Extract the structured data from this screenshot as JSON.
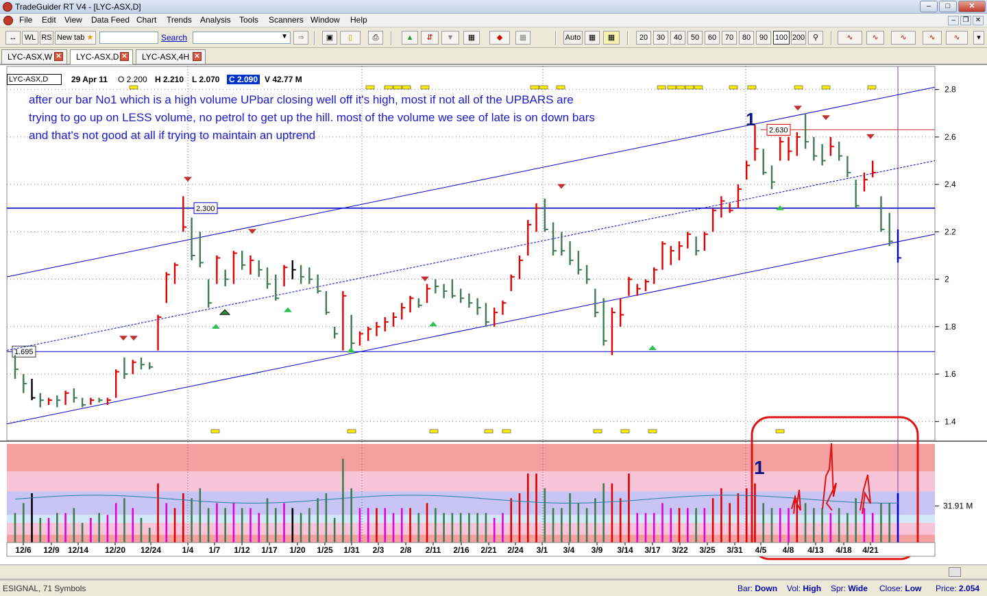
{
  "window": {
    "title": "TradeGuider RT V4 - [LYC-ASX,D]",
    "min_icon": "minimize-icon",
    "max_icon": "maximize-icon",
    "close_icon": "close-icon"
  },
  "menu": [
    "File",
    "Edit",
    "View",
    "Data Feed",
    "Chart",
    "Trends",
    "Analysis",
    "Tools",
    "Scanners",
    "Window",
    "Help"
  ],
  "toolbar": {
    "wl_label": "WL",
    "rs_label": "RS",
    "newtab_label": "New tab",
    "search_link": "Search",
    "auto_label": "Auto",
    "zoom_levels": [
      "20",
      "30",
      "40",
      "50",
      "60",
      "70",
      "80",
      "90",
      "100",
      "200"
    ]
  },
  "tabs": [
    {
      "label": "LYC-ASX,W"
    },
    {
      "label": "LYC-ASX,D"
    },
    {
      "label": "LYC-ASX,4H"
    }
  ],
  "chart_header": {
    "symbol": "LYC-ASX,D",
    "date": "29 Apr 11",
    "open": "O 2.200",
    "high": "H 2.210",
    "low": "L 2.070",
    "close": "C 2.090",
    "volume": "V 42.77 M"
  },
  "annotation": {
    "text": "after our bar No1 which is a high volume UPbar closing well off it's high, most if not all of the UPBARS are trying to go up on LESS volume, no petrol to get up the hill. most of the volume we see of late is on down bars and that's not good at all if trying to maintain an uptrend",
    "marker_price": "1",
    "marker_volume": "1"
  },
  "chart_data": {
    "type": "bar",
    "price_axis": {
      "ticks": [
        "2.8",
        "2.6",
        "2.4",
        "2.2",
        "2",
        "1.8",
        "1.6",
        "1.4"
      ],
      "ylim": [
        1.32,
        2.88
      ]
    },
    "volume_axis": {
      "label": "31.91 M"
    },
    "x_ticks": [
      "12/6",
      "12/9",
      "12/14",
      "12/20",
      "12/24",
      "1/4",
      "1/7",
      "1/12",
      "1/17",
      "1/20",
      "1/25",
      "1/31",
      "2/3",
      "2/8",
      "2/11",
      "2/16",
      "2/21",
      "2/24",
      "3/1",
      "3/4",
      "3/9",
      "3/14",
      "3/17",
      "3/22",
      "3/25",
      "3/31",
      "4/5",
      "4/8",
      "4/13",
      "4/18",
      "4/21"
    ],
    "level_labels": [
      "2.300",
      "1.695",
      "2.630"
    ],
    "levels": [
      2.3,
      1.695,
      2.63
    ],
    "colors": {
      "up": "#e00000",
      "down": "#3f7a52",
      "neutral": "#000000",
      "highlight": "#0000dd",
      "volume_magenta": "#e000e0"
    },
    "bars": [
      [
        1.68,
        1.58,
        1.62,
        "d"
      ],
      [
        1.6,
        1.52,
        1.56,
        "d"
      ],
      [
        1.58,
        1.49,
        1.5,
        "k"
      ],
      [
        1.52,
        1.46,
        1.49,
        "d"
      ],
      [
        1.5,
        1.47,
        1.49,
        "r"
      ],
      [
        1.51,
        1.46,
        1.49,
        "d"
      ],
      [
        1.53,
        1.47,
        1.52,
        "r"
      ],
      [
        1.54,
        1.48,
        1.5,
        "d"
      ],
      [
        1.5,
        1.46,
        1.47,
        "d"
      ],
      [
        1.5,
        1.47,
        1.49,
        "r"
      ],
      [
        1.5,
        1.48,
        1.49,
        "d"
      ],
      [
        1.5,
        1.47,
        1.49,
        "r"
      ],
      [
        1.62,
        1.5,
        1.61,
        "r"
      ],
      [
        1.67,
        1.58,
        1.6,
        "d"
      ],
      [
        1.66,
        1.6,
        1.65,
        "r"
      ],
      [
        1.67,
        1.62,
        1.64,
        "d"
      ],
      [
        1.65,
        1.62,
        1.63,
        "d"
      ],
      [
        1.85,
        1.7,
        1.84,
        "r"
      ],
      [
        2.03,
        1.9,
        2.02,
        "r"
      ],
      [
        2.07,
        1.98,
        2.06,
        "r"
      ],
      [
        2.35,
        2.2,
        2.22,
        "r"
      ],
      [
        2.26,
        2.08,
        2.1,
        "d"
      ],
      [
        2.2,
        2.05,
        2.07,
        "d"
      ],
      [
        2.0,
        1.88,
        1.9,
        "d"
      ],
      [
        2.1,
        1.98,
        2.09,
        "r"
      ],
      [
        2.04,
        1.97,
        2.0,
        "d"
      ],
      [
        2.12,
        1.98,
        2.11,
        "r"
      ],
      [
        2.12,
        2.04,
        2.06,
        "d"
      ],
      [
        2.1,
        2.02,
        2.08,
        "r"
      ],
      [
        2.08,
        2.01,
        2.04,
        "d"
      ],
      [
        2.05,
        1.96,
        1.98,
        "d"
      ],
      [
        2.02,
        1.91,
        1.92,
        "d"
      ],
      [
        2.06,
        1.97,
        2.05,
        "r"
      ],
      [
        2.08,
        2.0,
        2.04,
        "k"
      ],
      [
        2.06,
        1.98,
        2.01,
        "d"
      ],
      [
        2.05,
        1.98,
        2.0,
        "d"
      ],
      [
        2.02,
        1.94,
        1.95,
        "d"
      ],
      [
        1.95,
        1.85,
        1.86,
        "d"
      ],
      [
        1.8,
        1.75,
        1.77,
        "d"
      ],
      [
        1.95,
        1.7,
        1.93,
        "r"
      ],
      [
        1.85,
        1.7,
        1.73,
        "d"
      ],
      [
        1.78,
        1.72,
        1.77,
        "r"
      ],
      [
        1.8,
        1.74,
        1.79,
        "r"
      ],
      [
        1.82,
        1.76,
        1.8,
        "r"
      ],
      [
        1.84,
        1.78,
        1.82,
        "r"
      ],
      [
        1.86,
        1.8,
        1.84,
        "r"
      ],
      [
        1.9,
        1.83,
        1.88,
        "r"
      ],
      [
        1.93,
        1.86,
        1.92,
        "r"
      ],
      [
        1.92,
        1.88,
        1.89,
        "d"
      ],
      [
        1.98,
        1.9,
        1.96,
        "r"
      ],
      [
        2.0,
        1.94,
        1.97,
        "d"
      ],
      [
        1.98,
        1.92,
        1.95,
        "d"
      ],
      [
        2.0,
        1.92,
        1.93,
        "d"
      ],
      [
        1.96,
        1.9,
        1.92,
        "d"
      ],
      [
        1.94,
        1.88,
        1.9,
        "d"
      ],
      [
        1.92,
        1.85,
        1.88,
        "d"
      ],
      [
        1.9,
        1.8,
        1.82,
        "d"
      ],
      [
        1.88,
        1.8,
        1.86,
        "r"
      ],
      [
        1.91,
        1.85,
        1.9,
        "r"
      ],
      [
        2.02,
        1.95,
        2.01,
        "r"
      ],
      [
        2.1,
        2.0,
        2.08,
        "r"
      ],
      [
        2.25,
        2.1,
        2.23,
        "r"
      ],
      [
        2.32,
        2.2,
        2.3,
        "r"
      ],
      [
        2.34,
        2.2,
        2.21,
        "d"
      ],
      [
        2.24,
        2.1,
        2.12,
        "d"
      ],
      [
        2.2,
        2.1,
        2.12,
        "d"
      ],
      [
        2.16,
        2.06,
        2.08,
        "d"
      ],
      [
        2.12,
        2.02,
        2.04,
        "d"
      ],
      [
        2.06,
        1.98,
        2.0,
        "d"
      ],
      [
        1.96,
        1.84,
        1.86,
        "d"
      ],
      [
        1.92,
        1.72,
        1.74,
        "d"
      ],
      [
        1.88,
        1.68,
        1.86,
        "r"
      ],
      [
        1.92,
        1.8,
        1.85,
        "r"
      ],
      [
        2.01,
        1.93,
        2.0,
        "r"
      ],
      [
        1.98,
        1.93,
        1.96,
        "r"
      ],
      [
        2.0,
        1.95,
        1.99,
        "r"
      ],
      [
        2.05,
        1.98,
        2.04,
        "r"
      ],
      [
        2.16,
        2.04,
        2.15,
        "r"
      ],
      [
        2.14,
        2.06,
        2.12,
        "r"
      ],
      [
        2.16,
        2.08,
        2.14,
        "r"
      ],
      [
        2.2,
        2.13,
        2.19,
        "r"
      ],
      [
        2.18,
        2.1,
        2.12,
        "d"
      ],
      [
        2.2,
        2.12,
        2.19,
        "r"
      ],
      [
        2.3,
        2.2,
        2.29,
        "r"
      ],
      [
        2.35,
        2.26,
        2.33,
        "r"
      ],
      [
        2.32,
        2.28,
        2.29,
        "r"
      ],
      [
        2.4,
        2.3,
        2.38,
        "r"
      ],
      [
        2.5,
        2.42,
        2.48,
        "r"
      ],
      [
        2.65,
        2.5,
        2.55,
        "r"
      ],
      [
        2.55,
        2.44,
        2.45,
        "d"
      ],
      [
        2.48,
        2.38,
        2.41,
        "d"
      ],
      [
        2.6,
        2.5,
        2.58,
        "r"
      ],
      [
        2.6,
        2.5,
        2.54,
        "r"
      ],
      [
        2.62,
        2.52,
        2.6,
        "r"
      ],
      [
        2.7,
        2.55,
        2.58,
        "d"
      ],
      [
        2.6,
        2.5,
        2.52,
        "d"
      ],
      [
        2.57,
        2.48,
        2.5,
        "d"
      ],
      [
        2.6,
        2.52,
        2.56,
        "r"
      ],
      [
        2.58,
        2.5,
        2.52,
        "d"
      ],
      [
        2.52,
        2.43,
        2.45,
        "d"
      ],
      [
        2.42,
        2.3,
        2.31,
        "d"
      ],
      [
        2.45,
        2.37,
        2.42,
        "r"
      ],
      [
        2.5,
        2.43,
        2.45,
        "r"
      ],
      [
        2.35,
        2.2,
        2.21,
        "d"
      ],
      [
        2.28,
        2.14,
        2.16,
        "d"
      ],
      [
        2.21,
        2.07,
        2.09,
        "b"
      ]
    ],
    "volume": [
      [
        0.3,
        "d"
      ],
      [
        0.4,
        "d"
      ],
      [
        0.5,
        "k"
      ],
      [
        0.25,
        "d"
      ],
      [
        0.25,
        "m"
      ],
      [
        0.3,
        "d"
      ],
      [
        0.3,
        "m"
      ],
      [
        0.35,
        "d"
      ],
      [
        0.2,
        "d"
      ],
      [
        0.25,
        "m"
      ],
      [
        0.3,
        "d"
      ],
      [
        0.28,
        "m"
      ],
      [
        0.4,
        "m"
      ],
      [
        0.45,
        "d"
      ],
      [
        0.35,
        "m"
      ],
      [
        0.25,
        "d"
      ],
      [
        0.15,
        "d"
      ],
      [
        0.6,
        "r"
      ],
      [
        0.4,
        "m"
      ],
      [
        0.35,
        "r"
      ],
      [
        0.5,
        "r"
      ],
      [
        0.45,
        "d"
      ],
      [
        0.55,
        "d"
      ],
      [
        0.35,
        "d"
      ],
      [
        0.4,
        "m"
      ],
      [
        0.35,
        "d"
      ],
      [
        0.4,
        "m"
      ],
      [
        0.35,
        "d"
      ],
      [
        0.35,
        "m"
      ],
      [
        0.3,
        "m"
      ],
      [
        0.45,
        "d"
      ],
      [
        0.35,
        "d"
      ],
      [
        0.4,
        "m"
      ],
      [
        0.35,
        "k"
      ],
      [
        0.3,
        "d"
      ],
      [
        0.35,
        "d"
      ],
      [
        0.45,
        "d"
      ],
      [
        0.5,
        "d"
      ],
      [
        0.25,
        "d"
      ],
      [
        0.85,
        "d"
      ],
      [
        0.55,
        "d"
      ],
      [
        0.35,
        "m"
      ],
      [
        0.35,
        "m"
      ],
      [
        0.35,
        "r"
      ],
      [
        0.35,
        "m"
      ],
      [
        0.3,
        "m"
      ],
      [
        0.35,
        "m"
      ],
      [
        0.35,
        "r"
      ],
      [
        0.3,
        "d"
      ],
      [
        0.4,
        "r"
      ],
      [
        0.35,
        "d"
      ],
      [
        0.3,
        "d"
      ],
      [
        0.3,
        "d"
      ],
      [
        0.3,
        "d"
      ],
      [
        0.3,
        "d"
      ],
      [
        0.3,
        "d"
      ],
      [
        0.3,
        "d"
      ],
      [
        0.25,
        "m"
      ],
      [
        0.3,
        "m"
      ],
      [
        0.45,
        "r"
      ],
      [
        0.5,
        "r"
      ],
      [
        0.7,
        "r"
      ],
      [
        0.7,
        "r"
      ],
      [
        0.55,
        "d"
      ],
      [
        0.35,
        "d"
      ],
      [
        0.35,
        "d"
      ],
      [
        0.5,
        "d"
      ],
      [
        0.4,
        "d"
      ],
      [
        0.35,
        "d"
      ],
      [
        0.45,
        "d"
      ],
      [
        0.6,
        "d"
      ],
      [
        0.6,
        "r"
      ],
      [
        0.45,
        "r"
      ],
      [
        0.7,
        "r"
      ],
      [
        0.3,
        "m"
      ],
      [
        0.3,
        "m"
      ],
      [
        0.3,
        "m"
      ],
      [
        0.4,
        "m"
      ],
      [
        0.35,
        "m"
      ],
      [
        0.35,
        "r"
      ],
      [
        0.35,
        "m"
      ],
      [
        0.35,
        "d"
      ],
      [
        0.35,
        "m"
      ],
      [
        0.45,
        "r"
      ],
      [
        0.55,
        "r"
      ],
      [
        0.4,
        "r"
      ],
      [
        0.5,
        "r"
      ],
      [
        0.55,
        "r"
      ],
      [
        0.6,
        "r"
      ],
      [
        0.4,
        "d"
      ],
      [
        0.35,
        "d"
      ],
      [
        0.35,
        "m"
      ],
      [
        0.35,
        "m"
      ],
      [
        0.4,
        "r"
      ],
      [
        0.4,
        "d"
      ],
      [
        0.35,
        "d"
      ],
      [
        0.35,
        "d"
      ],
      [
        0.3,
        "m"
      ],
      [
        0.35,
        "d"
      ],
      [
        0.3,
        "d"
      ],
      [
        0.45,
        "d"
      ],
      [
        0.35,
        "m"
      ],
      [
        0.3,
        "m"
      ],
      [
        0.4,
        "d"
      ],
      [
        0.4,
        "d"
      ],
      [
        0.5,
        "b"
      ]
    ]
  },
  "status": {
    "left": "ESIGNAL, 71 Symbols",
    "bar_label": "Bar:",
    "bar_value": "Down",
    "vol_label": "Vol:",
    "vol_value": "High",
    "spr_label": "Spr:",
    "spr_value": "Wide",
    "close_label": "Close:",
    "close_value": "Low",
    "price_label": "Price:",
    "price_value": "2.054"
  }
}
